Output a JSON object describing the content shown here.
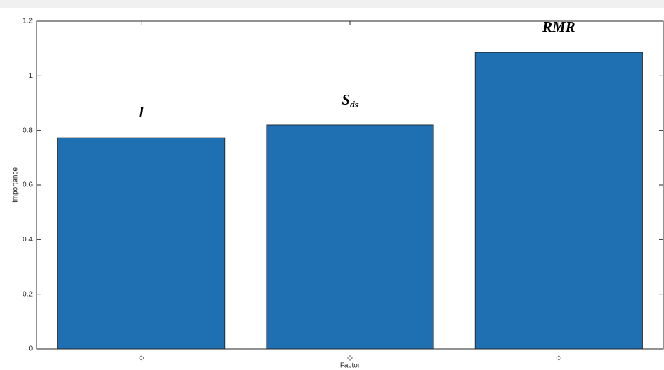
{
  "chart_data": {
    "type": "bar",
    "x_label": "Factor",
    "y_label": "Importance",
    "categories": [
      "◇",
      "◇",
      "◇"
    ],
    "values": [
      0.773,
      0.82,
      1.086
    ],
    "annotations": [
      {
        "text": "l"
      },
      {
        "text": "S",
        "subscript": "ds"
      },
      {
        "text": "RMR"
      }
    ],
    "color": "#1f6fb3",
    "ylim": [
      0,
      1.2
    ],
    "yticks": [
      0,
      0.2,
      0.4,
      0.6,
      0.8,
      1,
      1.2
    ],
    "grid": false
  }
}
